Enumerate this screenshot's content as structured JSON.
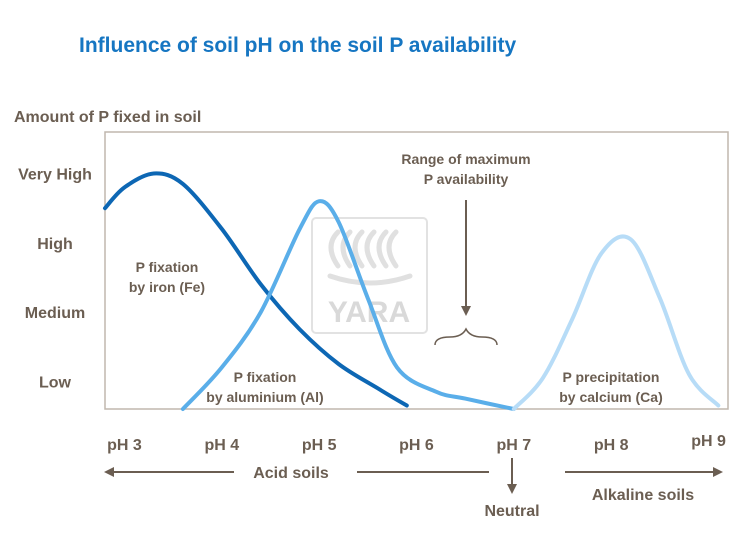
{
  "chart_data": {
    "type": "line",
    "title": "Influence of soil pH on the soil P availability",
    "ylabel": "Amount of P fixed in soil",
    "y_levels": [
      "Low",
      "Medium",
      "High",
      "Very High"
    ],
    "y_level_values": [
      1,
      2,
      3,
      4
    ],
    "ylim": [
      0.6,
      4.6
    ],
    "x_ticks": [
      "pH 3",
      "pH 4",
      "pH 5",
      "pH 6",
      "pH 7",
      "pH 8",
      "pH 9"
    ],
    "x_tick_values": [
      3,
      4,
      5,
      6,
      7,
      8,
      9
    ],
    "xlim": [
      2.8,
      9.2
    ],
    "series": [
      {
        "name": "P fixation by iron (Fe)",
        "label_lines": [
          "P fixation",
          "by iron (Fe)"
        ],
        "color": "#0d67b4",
        "x": [
          2.8,
          3.0,
          3.3,
          3.6,
          4.0,
          4.4,
          4.8,
          5.2,
          5.6,
          5.9
        ],
        "y": [
          3.5,
          3.8,
          4.0,
          3.85,
          3.2,
          2.4,
          1.75,
          1.25,
          0.9,
          0.65
        ]
      },
      {
        "name": "P fixation by aluminium (Al)",
        "label_lines": [
          "P fixation",
          "by aluminium (Al)"
        ],
        "color": "#5aaee9",
        "x": [
          3.6,
          4.0,
          4.4,
          4.8,
          5.0,
          5.2,
          5.5,
          5.8,
          6.2,
          6.5,
          7.0
        ],
        "y": [
          0.6,
          1.2,
          2.0,
          3.2,
          3.6,
          3.3,
          2.2,
          1.2,
          0.85,
          0.75,
          0.6
        ]
      },
      {
        "name": "P precipitation by calcium (Ca)",
        "label_lines": [
          "P precipitation",
          "by calcium (Ca)"
        ],
        "color": "#b7dcf7",
        "x": [
          7.0,
          7.3,
          7.6,
          7.9,
          8.2,
          8.5,
          8.8,
          9.1
        ],
        "y": [
          0.6,
          1.05,
          1.9,
          2.85,
          3.05,
          2.2,
          1.1,
          0.65
        ]
      }
    ],
    "annotations": {
      "max_availability": [
        "Range of maximum",
        "P availability"
      ],
      "acid": "Acid soils",
      "neutral": "Neutral",
      "alkaline": "Alkaline soils"
    },
    "watermark": "YARA"
  }
}
